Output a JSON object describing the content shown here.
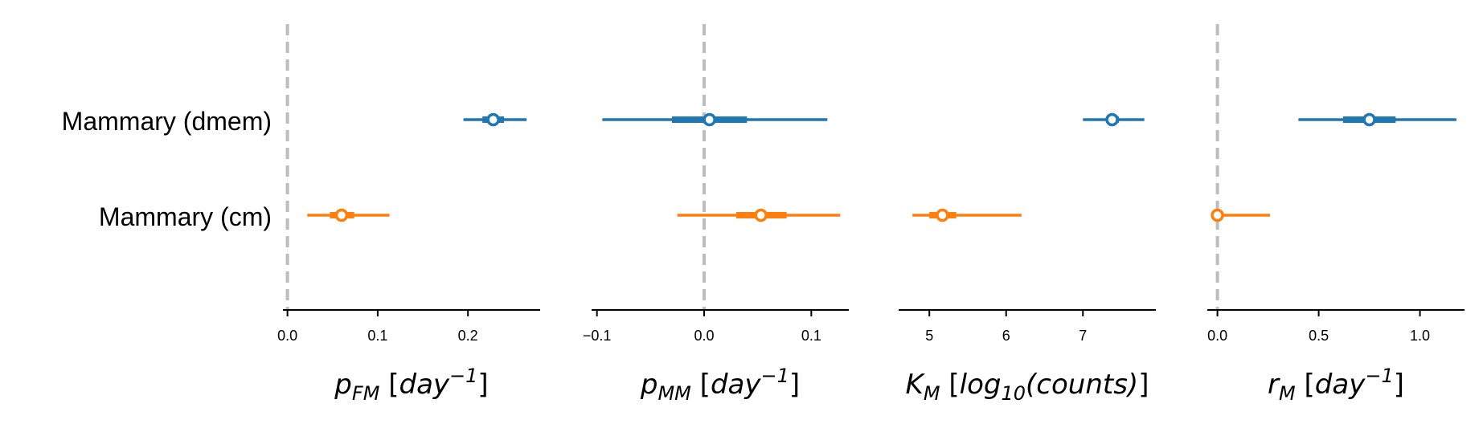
{
  "categories": [
    "Mammary (dmem)",
    "Mammary (cm)"
  ],
  "colors": {
    "dmem": "#1f77b4",
    "cm": "#ff7f0e",
    "refline": "#bdbdbd",
    "axis": "#000000"
  },
  "chart_data": [
    {
      "type": "forest",
      "xlabel": {
        "base": "p",
        "sub": "FM",
        "bracket_open": "[",
        "unit": "day",
        "sup": "−1",
        "bracket_close": "]"
      },
      "xlim": [
        -0.005,
        0.28
      ],
      "ticks": [
        0.0,
        0.1,
        0.2
      ],
      "tick_labels": [
        "0.0",
        "0.1",
        "0.2"
      ],
      "reference_line": 0,
      "series": [
        {
          "category": "Mammary (dmem)",
          "median": 0.228,
          "iqr": [
            0.216,
            0.24
          ],
          "range": [
            0.195,
            0.265
          ]
        },
        {
          "category": "Mammary (cm)",
          "median": 0.06,
          "iqr": [
            0.047,
            0.074
          ],
          "range": [
            0.022,
            0.113
          ]
        }
      ]
    },
    {
      "type": "forest",
      "xlabel": {
        "base": "p",
        "sub": "MM",
        "bracket_open": "[",
        "unit": "day",
        "sup": "−1",
        "bracket_close": "]"
      },
      "xlim": [
        -0.105,
        0.135
      ],
      "ticks": [
        -0.1,
        0.0,
        0.1
      ],
      "tick_labels": [
        "−0.1",
        "0.0",
        "0.1"
      ],
      "reference_line": 0,
      "series": [
        {
          "category": "Mammary (dmem)",
          "median": 0.005,
          "iqr": [
            -0.03,
            0.04
          ],
          "range": [
            -0.095,
            0.115
          ]
        },
        {
          "category": "Mammary (cm)",
          "median": 0.053,
          "iqr": [
            0.03,
            0.077
          ],
          "range": [
            -0.025,
            0.127
          ]
        }
      ]
    },
    {
      "type": "forest",
      "xlabel": {
        "base": "K",
        "sub": "M",
        "bracket_open": "[",
        "unit": "log",
        "unit_sub": "10",
        "unit_rest": "(counts)",
        "bracket_close": "]"
      },
      "xlim": [
        4.6,
        7.95
      ],
      "ticks": [
        5,
        6,
        7
      ],
      "tick_labels": [
        "5",
        "6",
        "7"
      ],
      "reference_line": null,
      "series": [
        {
          "category": "Mammary (dmem)",
          "median": 7.38,
          "iqr": [
            7.3,
            7.47
          ],
          "range": [
            7.0,
            7.8
          ]
        },
        {
          "category": "Mammary (cm)",
          "median": 5.17,
          "iqr": [
            5.0,
            5.35
          ],
          "range": [
            4.78,
            6.2
          ]
        }
      ]
    },
    {
      "type": "forest",
      "xlabel": {
        "base": "r",
        "sub": "M",
        "bracket_open": "[",
        "unit": "day",
        "sup": "−1",
        "bracket_close": "]"
      },
      "xlim": [
        -0.05,
        1.22
      ],
      "ticks": [
        0.0,
        0.5,
        1.0
      ],
      "tick_labels": [
        "0.0",
        "0.5",
        "1.0"
      ],
      "reference_line": 0,
      "series": [
        {
          "category": "Mammary (dmem)",
          "median": 0.75,
          "iqr": [
            0.62,
            0.88
          ],
          "range": [
            0.4,
            1.18
          ]
        },
        {
          "category": "Mammary (cm)",
          "median": 0.0,
          "iqr": [
            0.0,
            0.0
          ],
          "range": [
            0.0,
            0.26
          ]
        }
      ]
    }
  ]
}
